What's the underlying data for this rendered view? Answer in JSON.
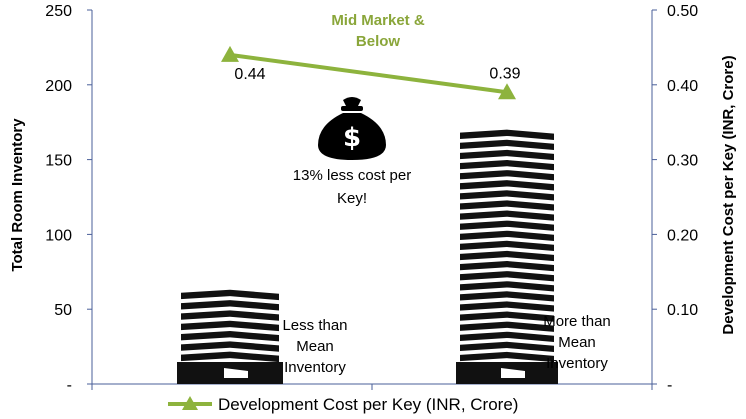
{
  "chart_data": {
    "type": "combo-line",
    "categories": [
      "Less than Mean Inventory",
      "More than Mean Inventory"
    ],
    "category_label_lines": [
      [
        "Less than",
        "Mean",
        "Inventory"
      ],
      [
        "More than",
        "Mean",
        "Inventory"
      ]
    ],
    "left_axis": {
      "label": "Total Room Inventory",
      "range": [
        0,
        250
      ],
      "ticks": [
        0,
        50,
        100,
        150,
        200,
        250
      ],
      "tick_labels": [
        "-",
        "50",
        "100",
        "150",
        "200",
        "250"
      ]
    },
    "right_axis": {
      "label": "Development Cost per Key (INR, Crore)",
      "range": [
        0,
        0.5
      ],
      "ticks": [
        0,
        0.1,
        0.2,
        0.3,
        0.4,
        0.5
      ],
      "tick_labels": [
        "-",
        "0.10",
        "0.20",
        "0.30",
        "0.40",
        "0.50"
      ]
    },
    "building_inventory": [
      63,
      170
    ],
    "series": [
      {
        "name": "Development Cost per Key (INR, Crore)",
        "axis": "right",
        "values": [
          0.44,
          0.39
        ],
        "data_labels": [
          "0.44",
          "0.39"
        ],
        "color": "#8db33d",
        "marker": "triangle"
      }
    ],
    "annotations": {
      "segment_label_lines": [
        "Mid Market &",
        "Below"
      ],
      "segment_label_color": "#8aa63a",
      "callout_lines": [
        "13% less cost per",
        "Key!"
      ]
    },
    "legend_position": "bottom",
    "grid": false
  },
  "colors": {
    "axis": "#4a5f99",
    "building": "#111111",
    "line": "#8db33d",
    "annotation": "#8aa63a"
  },
  "icons": {
    "moneybag": "money-bag-icon"
  }
}
